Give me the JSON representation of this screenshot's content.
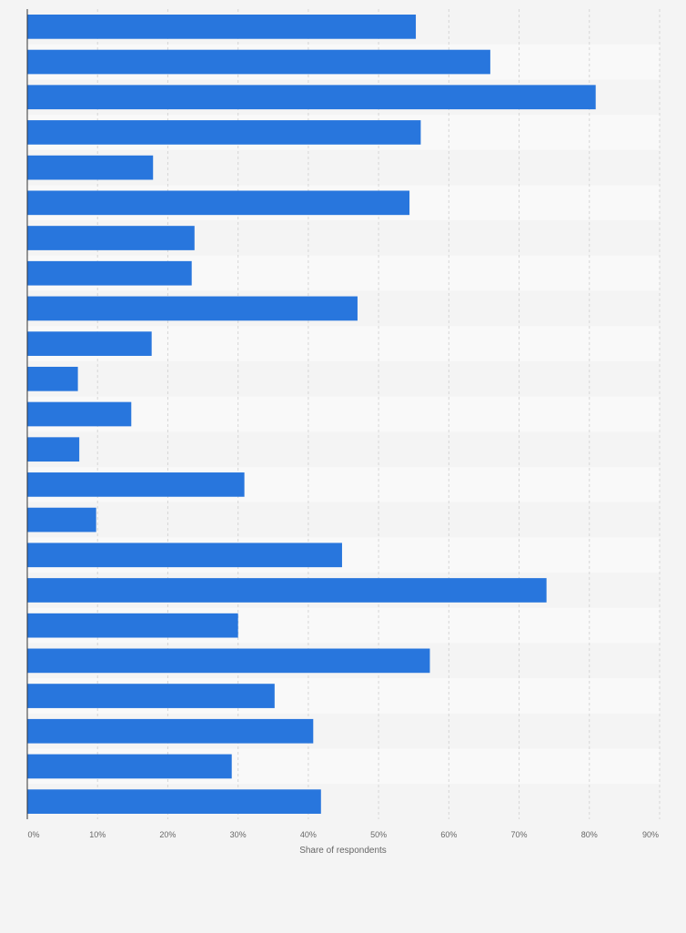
{
  "chart_data": {
    "type": "bar",
    "orientation": "horizontal",
    "values": [
      55.3,
      65.9,
      80.9,
      56.0,
      17.9,
      54.4,
      23.8,
      23.4,
      47.0,
      17.7,
      7.2,
      14.8,
      7.4,
      30.9,
      9.8,
      44.8,
      73.9,
      30.0,
      57.3,
      35.2,
      40.7,
      29.1,
      41.8
    ],
    "xlabel": "Share of respondents",
    "xlim": [
      0,
      90
    ],
    "x_ticks": [
      "0%",
      "10%",
      "20%",
      "30%",
      "40%",
      "50%",
      "60%",
      "70%",
      "80%",
      "90%"
    ],
    "grid": true,
    "bar_color": "#2876dd"
  }
}
